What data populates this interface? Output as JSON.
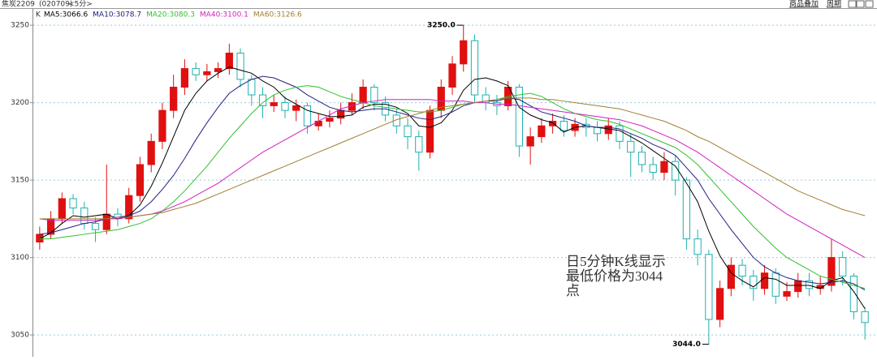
{
  "header": {
    "symbol": "焦炭2209",
    "code": "(020709)",
    "period": "<5分>",
    "buttons": [
      "商品叠加",
      "周期"
    ]
  },
  "chart_data": {
    "type": "candlestick",
    "legend_label": "K",
    "up_color": "#e01010",
    "down_color": "#20b0b0",
    "ylim": [
      3038,
      3260
    ],
    "yticks": [
      3050,
      3100,
      3150,
      3200,
      3250
    ],
    "grid": true,
    "open": [
      3110,
      3115,
      3125,
      3138,
      3132,
      3122,
      3118,
      3128,
      3125,
      3140,
      3160,
      3175,
      3195,
      3210,
      3222,
      3218,
      3220,
      3222,
      3232,
      3215,
      3205,
      3198,
      3200,
      3195,
      3198,
      3185,
      3188,
      3190,
      3195,
      3200,
      3210,
      3200,
      3192,
      3185,
      3178,
      3168,
      3195,
      3210,
      3225,
      3240,
      3205,
      3200,
      3198,
      3210,
      3172,
      3178,
      3185,
      3188,
      3182,
      3186,
      3184,
      3180,
      3185,
      3175,
      3168,
      3160,
      3155,
      3162,
      3150,
      3112,
      3102,
      3060,
      3080,
      3095,
      3088,
      3080,
      3090,
      3075,
      3078,
      3085,
      3080,
      3082,
      3100,
      3088,
      3065
    ],
    "high": [
      3120,
      3130,
      3142,
      3141,
      3136,
      3126,
      3160,
      3132,
      3145,
      3165,
      3180,
      3200,
      3218,
      3228,
      3226,
      3225,
      3226,
      3238,
      3235,
      3218,
      3210,
      3205,
      3204,
      3202,
      3200,
      3193,
      3195,
      3200,
      3206,
      3215,
      3212,
      3204,
      3196,
      3190,
      3182,
      3198,
      3215,
      3230,
      3250,
      3244,
      3210,
      3205,
      3214,
      3212,
      3184,
      3190,
      3193,
      3192,
      3190,
      3190,
      3188,
      3190,
      3188,
      3180,
      3172,
      3165,
      3168,
      3166,
      3152,
      3118,
      3105,
      3085,
      3100,
      3099,
      3092,
      3095,
      3093,
      3084,
      3090,
      3090,
      3088,
      3112,
      3104,
      3090,
      3068
    ],
    "low": [
      3105,
      3112,
      3122,
      3128,
      3118,
      3110,
      3115,
      3120,
      3122,
      3136,
      3155,
      3170,
      3190,
      3205,
      3214,
      3214,
      3216,
      3218,
      3210,
      3198,
      3190,
      3194,
      3190,
      3188,
      3180,
      3182,
      3184,
      3186,
      3192,
      3196,
      3195,
      3188,
      3180,
      3170,
      3156,
      3164,
      3190,
      3205,
      3220,
      3200,
      3195,
      3192,
      3195,
      3165,
      3160,
      3174,
      3180,
      3178,
      3178,
      3178,
      3175,
      3176,
      3170,
      3152,
      3155,
      3150,
      3150,
      3140,
      3105,
      3095,
      3044,
      3055,
      3075,
      3082,
      3072,
      3076,
      3070,
      3072,
      3074,
      3075,
      3076,
      3078,
      3082,
      3060,
      3047
    ],
    "close": [
      3115,
      3125,
      3138,
      3132,
      3122,
      3118,
      3128,
      3125,
      3140,
      3160,
      3175,
      3195,
      3210,
      3222,
      3218,
      3220,
      3222,
      3232,
      3215,
      3205,
      3198,
      3200,
      3195,
      3198,
      3185,
      3188,
      3190,
      3195,
      3200,
      3210,
      3200,
      3192,
      3185,
      3178,
      3168,
      3195,
      3210,
      3225,
      3240,
      3205,
      3200,
      3198,
      3210,
      3172,
      3178,
      3185,
      3188,
      3182,
      3186,
      3184,
      3180,
      3185,
      3175,
      3168,
      3160,
      3155,
      3162,
      3150,
      3112,
      3102,
      3060,
      3080,
      3095,
      3088,
      3080,
      3090,
      3075,
      3078,
      3085,
      3080,
      3082,
      3100,
      3088,
      3065,
      3058
    ],
    "price_labels": [
      {
        "label": "3250.0",
        "value": 3250
      },
      {
        "label": "3044.0",
        "value": 3044
      }
    ],
    "series": [
      {
        "name": "MA5:3066.6",
        "color": "#000000",
        "values": [
          3112,
          3116,
          3122,
          3127,
          3126,
          3127,
          3128,
          3125,
          3127,
          3134,
          3146,
          3161,
          3178,
          3195,
          3206,
          3214,
          3219,
          3223,
          3221,
          3219,
          3214,
          3210,
          3203,
          3199,
          3195,
          3193,
          3191,
          3191,
          3192,
          3197,
          3199,
          3199,
          3197,
          3193,
          3185,
          3184,
          3187,
          3195,
          3208,
          3215,
          3216,
          3214,
          3211,
          3197,
          3192,
          3189,
          3187,
          3181,
          3184,
          3185,
          3184,
          3183,
          3182,
          3178,
          3174,
          3169,
          3164,
          3159,
          3148,
          3136,
          3117,
          3101,
          3090,
          3085,
          3081,
          3087,
          3086,
          3082,
          3082,
          3082,
          3080,
          3085,
          3087,
          3078,
          3067
        ]
      },
      {
        "name": "MA10:3078.7",
        "color": "#202080",
        "values": [
          3115,
          3116,
          3118,
          3120,
          3122,
          3123,
          3125,
          3126,
          3127,
          3130,
          3136,
          3144,
          3153,
          3164,
          3176,
          3187,
          3197,
          3206,
          3211,
          3215,
          3217,
          3216,
          3213,
          3210,
          3205,
          3201,
          3197,
          3195,
          3194,
          3195,
          3196,
          3196,
          3194,
          3192,
          3190,
          3189,
          3191,
          3194,
          3198,
          3200,
          3201,
          3201,
          3203,
          3202,
          3198,
          3194,
          3192,
          3190,
          3188,
          3185,
          3184,
          3184,
          3183,
          3180,
          3177,
          3173,
          3170,
          3166,
          3158,
          3150,
          3138,
          3128,
          3118,
          3109,
          3100,
          3094,
          3090,
          3087,
          3085,
          3084,
          3083,
          3084,
          3085,
          3083,
          3079
        ]
      },
      {
        "name": "MA20:3080.3",
        "color": "#30c030",
        "values": [
          3112,
          3112,
          3113,
          3114,
          3115,
          3116,
          3117,
          3118,
          3120,
          3122,
          3125,
          3130,
          3136,
          3143,
          3151,
          3159,
          3168,
          3177,
          3185,
          3193,
          3200,
          3205,
          3208,
          3210,
          3211,
          3210,
          3207,
          3204,
          3202,
          3200,
          3198,
          3197,
          3196,
          3195,
          3194,
          3194,
          3195,
          3197,
          3199,
          3200,
          3201,
          3202,
          3204,
          3205,
          3206,
          3204,
          3200,
          3196,
          3193,
          3191,
          3189,
          3188,
          3186,
          3183,
          3180,
          3177,
          3174,
          3171,
          3166,
          3160,
          3152,
          3144,
          3136,
          3128,
          3120,
          3113,
          3106,
          3100,
          3096,
          3092,
          3088,
          3086,
          3084,
          3082,
          3080
        ]
      },
      {
        "name": "MA40:3100.1",
        "color": "#d020c0",
        "values": [
          3125,
          3124,
          3124,
          3124,
          3124,
          3124,
          3125,
          3125,
          3126,
          3127,
          3128,
          3130,
          3133,
          3136,
          3140,
          3144,
          3148,
          3153,
          3158,
          3163,
          3168,
          3172,
          3176,
          3180,
          3184,
          3188,
          3192,
          3196,
          3198,
          3200,
          3201,
          3202,
          3202,
          3202,
          3202,
          3202,
          3201,
          3201,
          3201,
          3200,
          3200,
          3199,
          3199,
          3198,
          3197,
          3196,
          3195,
          3194,
          3193,
          3192,
          3191,
          3190,
          3189,
          3187,
          3185,
          3182,
          3179,
          3176,
          3172,
          3168,
          3163,
          3158,
          3153,
          3148,
          3143,
          3138,
          3133,
          3128,
          3124,
          3120,
          3116,
          3112,
          3108,
          3104,
          3100
        ]
      },
      {
        "name": "MA60:3126.6",
        "color": "#a08030",
        "values": [
          3125,
          3125,
          3125,
          3125,
          3125,
          3125,
          3125,
          3126,
          3126,
          3127,
          3128,
          3129,
          3131,
          3133,
          3135,
          3138,
          3141,
          3144,
          3147,
          3150,
          3153,
          3156,
          3159,
          3162,
          3165,
          3168,
          3171,
          3174,
          3177,
          3180,
          3183,
          3186,
          3189,
          3191,
          3193,
          3195,
          3197,
          3198,
          3199,
          3200,
          3201,
          3202,
          3203,
          3203,
          3203,
          3202,
          3202,
          3201,
          3200,
          3199,
          3198,
          3197,
          3196,
          3194,
          3192,
          3190,
          3188,
          3185,
          3182,
          3178,
          3175,
          3171,
          3167,
          3163,
          3159,
          3155,
          3151,
          3147,
          3143,
          3140,
          3137,
          3134,
          3131,
          3129,
          3127
        ]
      }
    ],
    "annotation": [
      "日5分钟K线显示",
      "最低价格为3044",
      "点"
    ]
  }
}
